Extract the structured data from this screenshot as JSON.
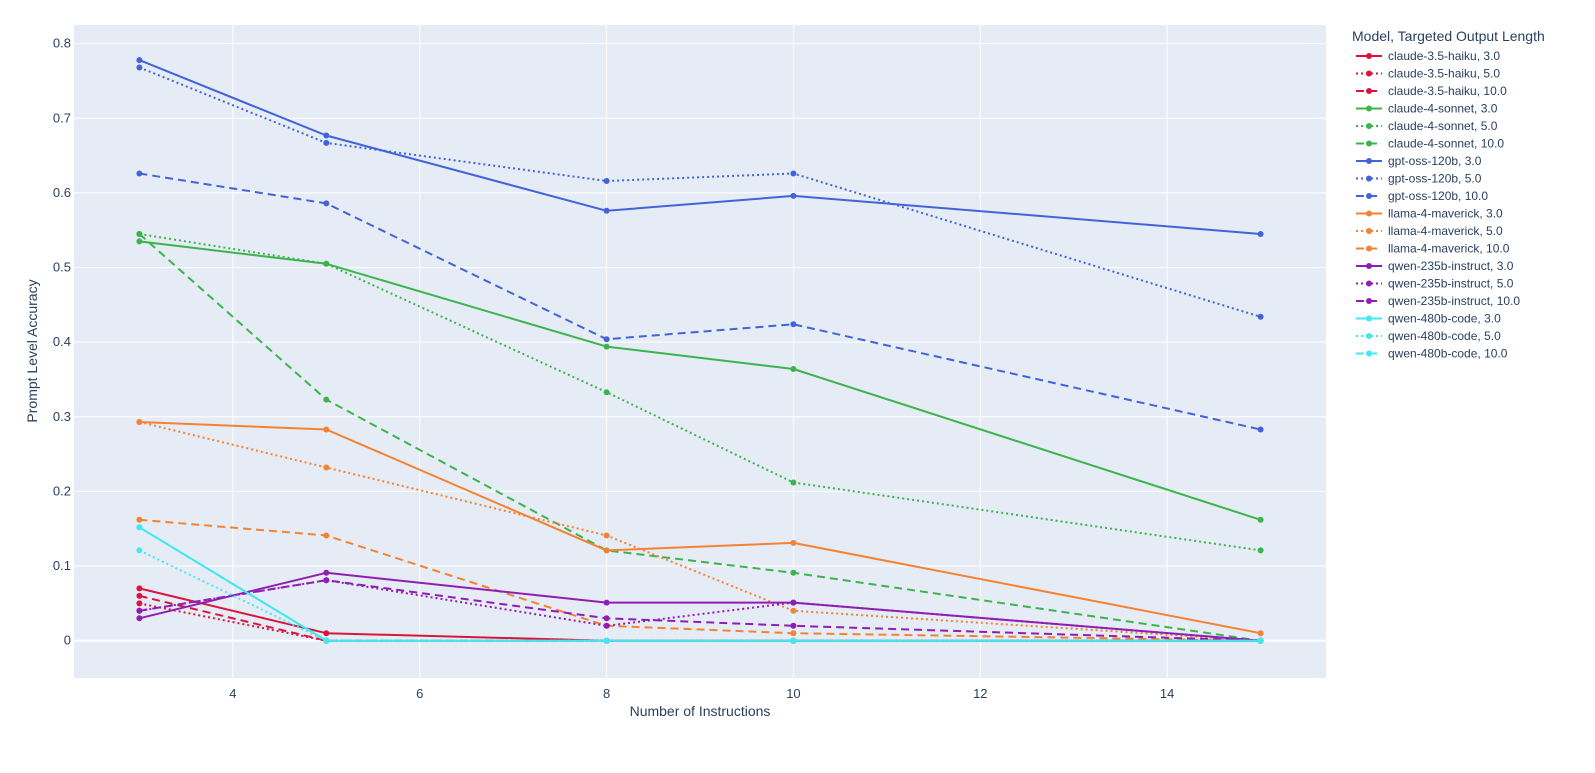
{
  "chart_data": {
    "type": "line",
    "title": "",
    "xlabel": "Number of Instructions",
    "ylabel": "Prompt Level Accuracy",
    "xlim": [
      2.3,
      15.7
    ],
    "ylim": [
      -0.05,
      0.825
    ],
    "xticks": [
      4,
      6,
      8,
      10,
      12,
      14
    ],
    "yticks": [
      0,
      0.1,
      0.2,
      0.3,
      0.4,
      0.5,
      0.6,
      0.7,
      0.8
    ],
    "xtick_labels": [
      "4",
      "6",
      "8",
      "10",
      "12",
      "14"
    ],
    "ytick_labels": [
      "0",
      "0.1",
      "0.2",
      "0.3",
      "0.4",
      "0.5",
      "0.6",
      "0.7",
      "0.8"
    ],
    "grid": true,
    "plot_background": "#e5ecf6",
    "legend": {
      "title": "Model, Targeted Output Length",
      "placement": "right"
    },
    "x": [
      3,
      5,
      8,
      10,
      15
    ],
    "series": [
      {
        "name": "claude-3.5-haiku, 3.0",
        "color": "#dc143c",
        "dash": "solid",
        "values": [
          0.07,
          0.01,
          0.0,
          0.0,
          0.0
        ]
      },
      {
        "name": "claude-3.5-haiku, 5.0",
        "color": "#dc143c",
        "dash": "dot",
        "values": [
          0.05,
          0.0,
          0.0,
          0.0,
          0.0
        ]
      },
      {
        "name": "claude-3.5-haiku, 10.0",
        "color": "#dc143c",
        "dash": "dash",
        "values": [
          0.06,
          0.0,
          0.0,
          0.0,
          0.0
        ]
      },
      {
        "name": "claude-4-sonnet, 3.0",
        "color": "#3cb44b",
        "dash": "solid",
        "values": [
          0.535,
          0.505,
          0.394,
          0.364,
          0.162
        ]
      },
      {
        "name": "claude-4-sonnet, 5.0",
        "color": "#3cb44b",
        "dash": "dot",
        "values": [
          0.545,
          0.505,
          0.333,
          0.212,
          0.121
        ]
      },
      {
        "name": "claude-4-sonnet, 10.0",
        "color": "#3cb44b",
        "dash": "dash",
        "values": [
          0.545,
          0.323,
          0.121,
          0.091,
          0.0
        ]
      },
      {
        "name": "gpt-oss-120b, 3.0",
        "color": "#4363d8",
        "dash": "solid",
        "values": [
          0.778,
          0.677,
          0.576,
          0.596,
          0.545
        ]
      },
      {
        "name": "gpt-oss-120b, 5.0",
        "color": "#4363d8",
        "dash": "dot",
        "values": [
          0.768,
          0.667,
          0.616,
          0.626,
          0.434
        ]
      },
      {
        "name": "gpt-oss-120b, 10.0",
        "color": "#4363d8",
        "dash": "dash",
        "values": [
          0.626,
          0.586,
          0.404,
          0.424,
          0.283
        ]
      },
      {
        "name": "llama-4-maverick, 3.0",
        "color": "#f58231",
        "dash": "solid",
        "values": [
          0.293,
          0.283,
          0.121,
          0.131,
          0.01
        ]
      },
      {
        "name": "llama-4-maverick, 5.0",
        "color": "#f58231",
        "dash": "dot",
        "values": [
          0.293,
          0.232,
          0.141,
          0.04,
          0.0
        ]
      },
      {
        "name": "llama-4-maverick, 10.0",
        "color": "#f58231",
        "dash": "dash",
        "values": [
          0.162,
          0.141,
          0.02,
          0.01,
          0.0
        ]
      },
      {
        "name": "qwen-235b-instruct, 3.0",
        "color": "#911eb4",
        "dash": "solid",
        "values": [
          0.03,
          0.091,
          0.051,
          0.051,
          0.0
        ]
      },
      {
        "name": "qwen-235b-instruct, 5.0",
        "color": "#911eb4",
        "dash": "dot",
        "values": [
          0.04,
          0.081,
          0.02,
          0.051,
          0.0
        ]
      },
      {
        "name": "qwen-235b-instruct, 10.0",
        "color": "#911eb4",
        "dash": "dash",
        "values": [
          0.04,
          0.081,
          0.03,
          0.02,
          0.0
        ]
      },
      {
        "name": "qwen-480b-code, 3.0",
        "color": "#42e8f0",
        "dash": "solid",
        "values": [
          0.152,
          0.0,
          0.0,
          0.0,
          0.0
        ]
      },
      {
        "name": "qwen-480b-code, 5.0",
        "color": "#42e8f0",
        "dash": "dot",
        "values": [
          0.121,
          0.0,
          0.0,
          0.0,
          0.0
        ]
      },
      {
        "name": "qwen-480b-code, 10.0",
        "color": "#42e8f0",
        "dash": "dash",
        "values": [
          0.152,
          0.0,
          0.0,
          0.0,
          0.0
        ]
      }
    ]
  }
}
